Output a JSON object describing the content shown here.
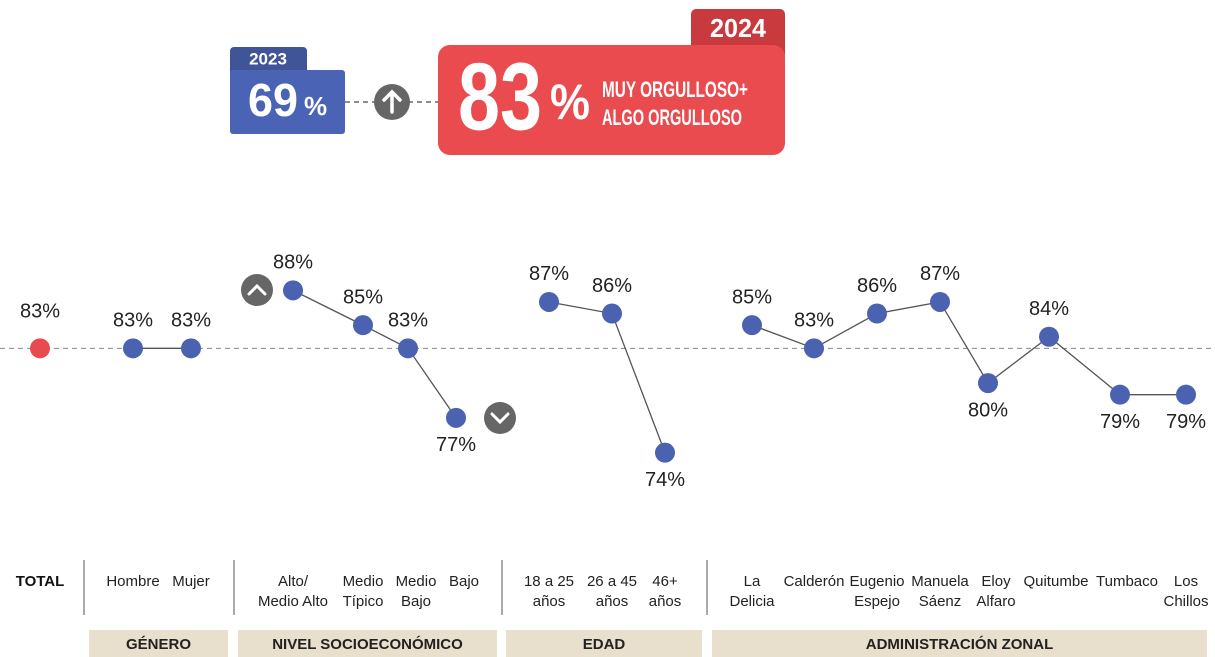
{
  "header": {
    "prev_year": "2023",
    "prev_value": 69,
    "current_year": "2024",
    "current_value": 83,
    "unit": "%",
    "description": [
      "MUY ORGULLOSO+",
      "ALGO ORGULLOSO"
    ]
  },
  "chart_data": {
    "type": "line",
    "color": "#4a62b0",
    "line_color": "#555555",
    "ylim": [
      70,
      92
    ],
    "total": {
      "name": "TOTAL",
      "value": 83,
      "value_label": "83%",
      "color": "#e84a4f"
    },
    "groups": [
      {
        "name": "GÉNERO",
        "categories": [
          [
            "Hombre"
          ],
          [
            "Mujer"
          ]
        ],
        "values": [
          83,
          83
        ],
        "value_labels": [
          "83%",
          "83%"
        ]
      },
      {
        "name": "NIVEL SOCIOECONÓMICO",
        "categories": [
          [
            "Alto/",
            "Medio Alto"
          ],
          [
            "Medio",
            "Típico"
          ],
          [
            "Medio",
            "Bajo"
          ],
          [
            "Bajo"
          ]
        ],
        "values": [
          88,
          85,
          83,
          77
        ],
        "value_labels": [
          "88%",
          "85%",
          "83%",
          "77%"
        ]
      },
      {
        "name": "EDAD",
        "categories": [
          [
            "18 a 25",
            "años"
          ],
          [
            "26 a 45",
            "años"
          ],
          [
            "46+",
            "años"
          ]
        ],
        "values": [
          87,
          86,
          74
        ],
        "value_labels": [
          "87%",
          "86%",
          "74%"
        ]
      },
      {
        "name": "ADMINISTRACIÓN ZONAL",
        "categories": [
          [
            "La",
            "Delicia"
          ],
          [
            "Calderón"
          ],
          [
            "Eugenio",
            "Espejo"
          ],
          [
            "Manuela",
            "Sáenz"
          ],
          [
            "Eloy",
            "Alfaro"
          ],
          [
            "Quitumbe"
          ],
          [
            "Tumbaco"
          ],
          [
            "Los",
            "Chillos"
          ]
        ],
        "values": [
          85,
          83,
          86,
          87,
          80,
          84,
          79,
          79
        ],
        "value_labels": [
          "85%",
          "83%",
          "86%",
          "87%",
          "80%",
          "84%",
          "79%",
          "79%"
        ]
      }
    ]
  }
}
